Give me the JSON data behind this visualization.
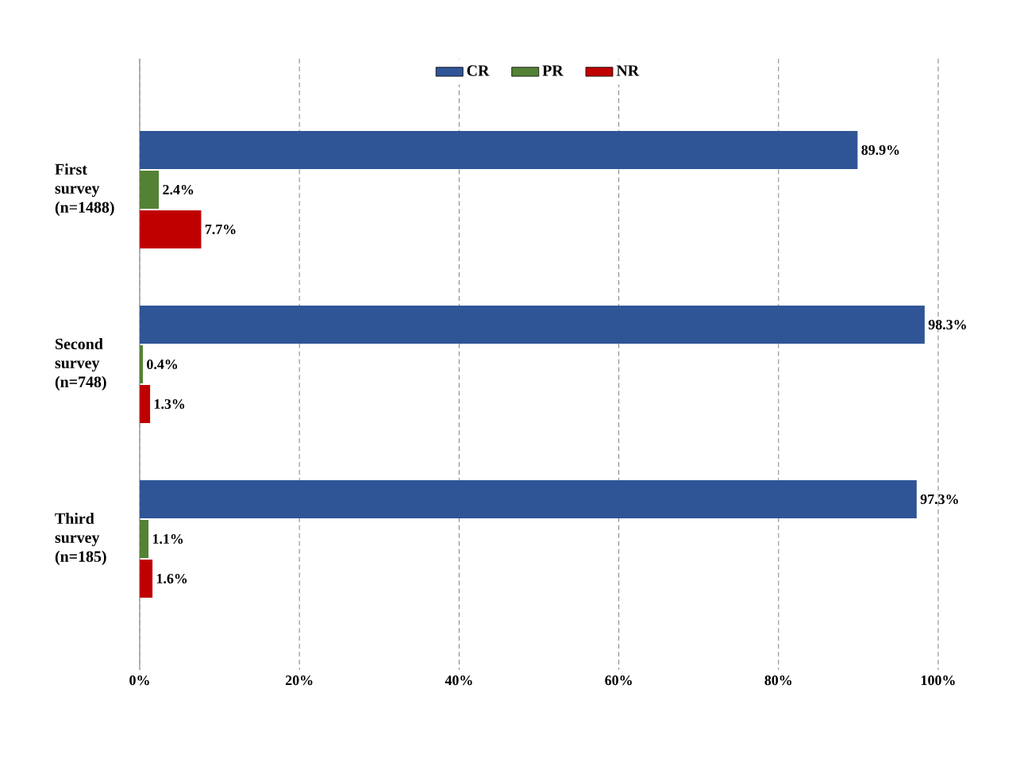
{
  "chart_data": {
    "type": "bar",
    "orientation": "horizontal",
    "categories": [
      "First survey (n=1488)",
      "Second survey (n=748)",
      "Third survey (n=185)"
    ],
    "series": [
      {
        "name": "CR",
        "color": "#2f5597",
        "values": [
          89.9,
          98.3,
          97.3
        ],
        "value_labels": [
          "89.9%",
          "98.3%",
          "97.3%"
        ]
      },
      {
        "name": "PR",
        "color": "#548235",
        "values": [
          2.4,
          0.4,
          1.1
        ],
        "value_labels": [
          "2.4%",
          "0.4%",
          "1.1%"
        ]
      },
      {
        "name": "NR",
        "color": "#c00000",
        "values": [
          7.7,
          1.3,
          1.6
        ],
        "value_labels": [
          "7.7%",
          "1.3%",
          "1.6%"
        ]
      }
    ],
    "xlim": [
      0,
      100
    ],
    "xticks": [
      {
        "value": 0,
        "label": "0%"
      },
      {
        "value": 20,
        "label": "20%"
      },
      {
        "value": 40,
        "label": "40%"
      },
      {
        "value": 60,
        "label": "60%"
      },
      {
        "value": 80,
        "label": "80%"
      },
      {
        "value": 100,
        "label": "100%"
      }
    ],
    "grid": "x",
    "legend": "top"
  }
}
